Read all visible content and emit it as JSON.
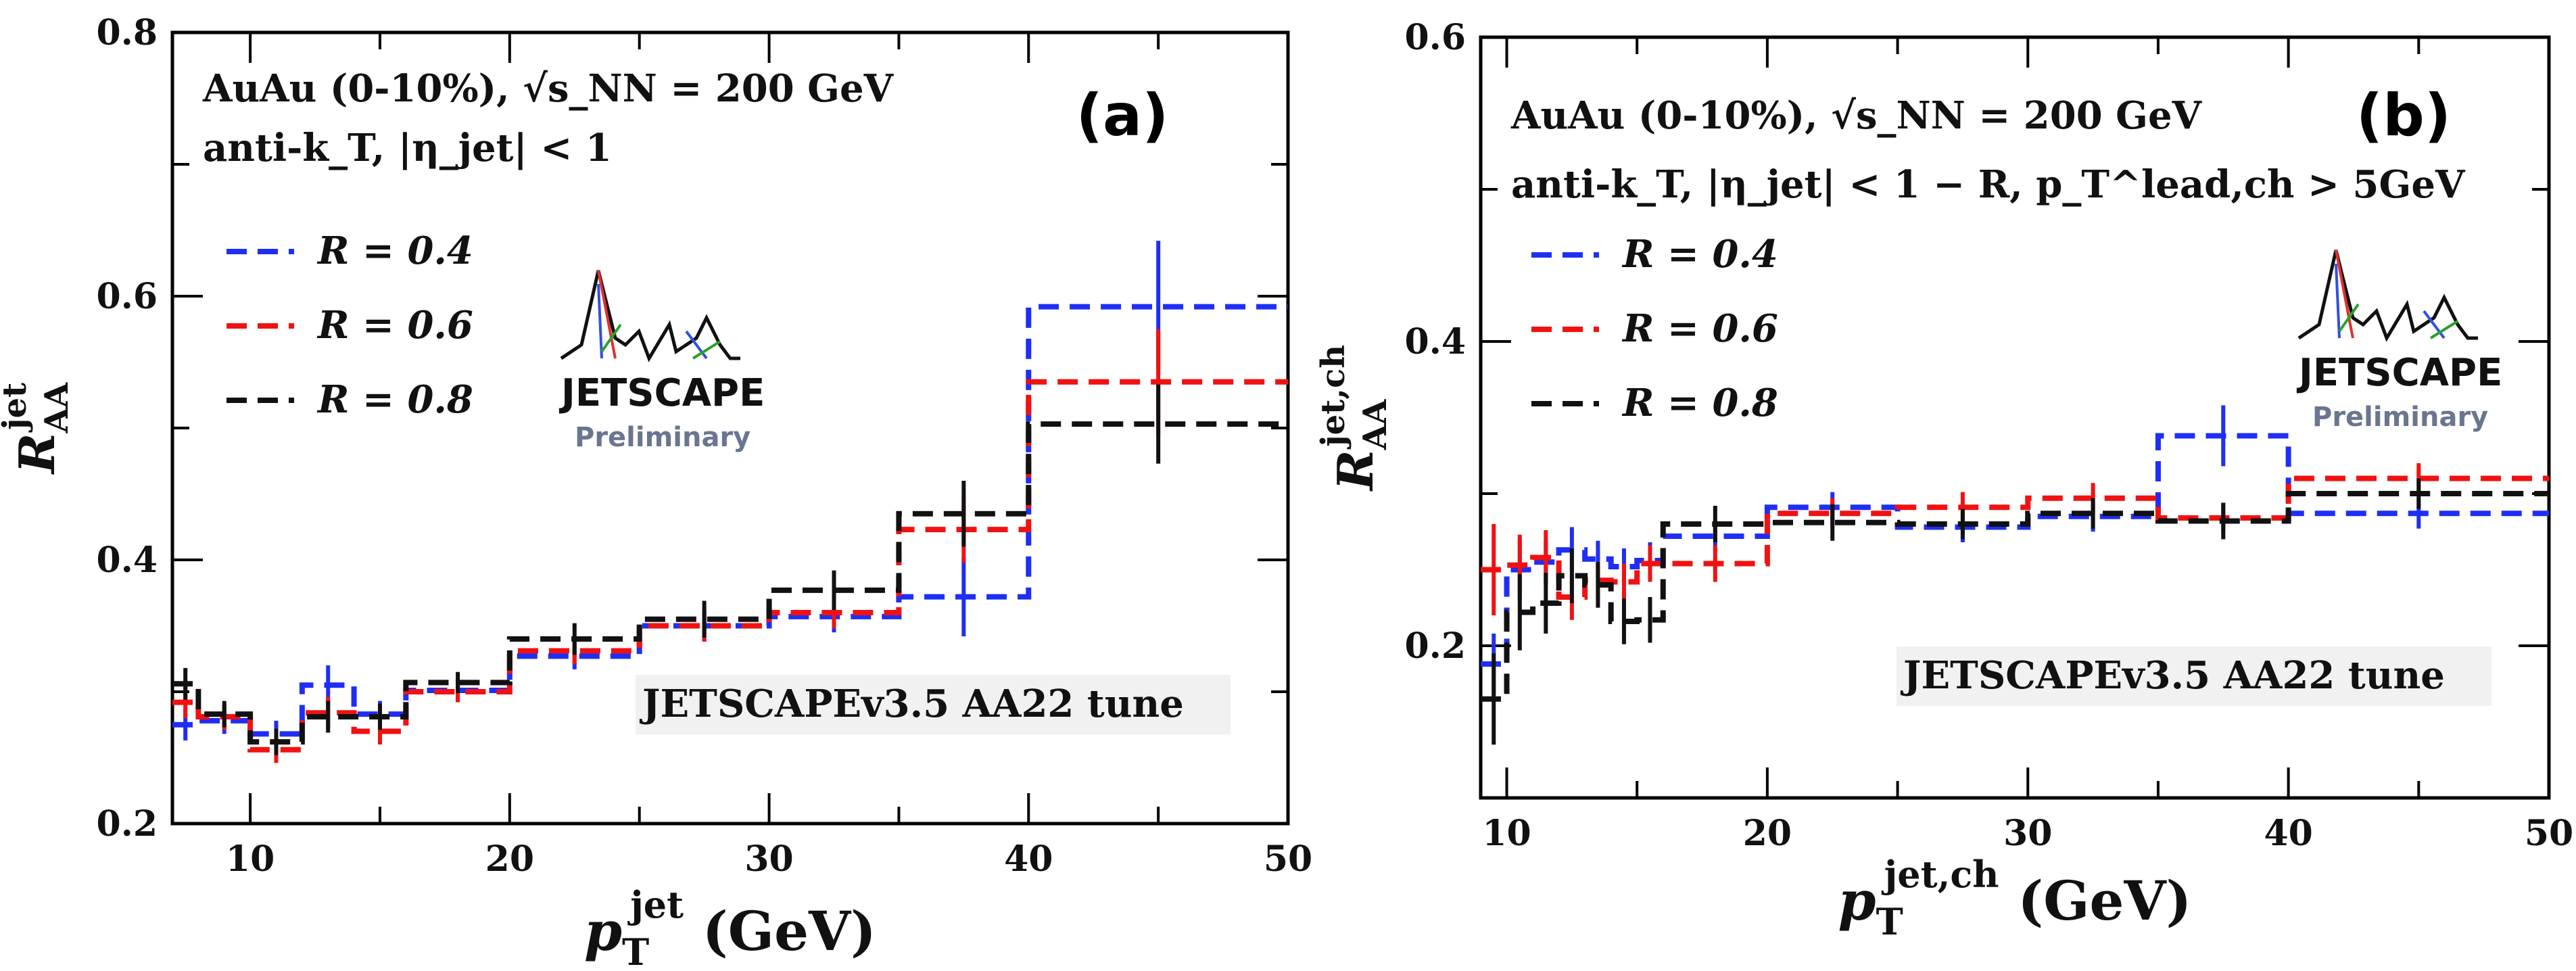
{
  "chart_data": [
    {
      "type": "line",
      "panel_tag": "(a)",
      "xlabel": "p_T^jet (GeV)",
      "xlabel_main": "p",
      "xlabel_sub": "T",
      "xlabel_sup": "jet",
      "xlabel_unit": " (GeV)",
      "ylabel_main": "R",
      "ylabel_sub": "AA",
      "ylabel_sup": "jet",
      "xlim": [
        7,
        50
      ],
      "ylim": [
        0.2,
        0.8
      ],
      "xticks": [
        10,
        20,
        30,
        40,
        50
      ],
      "yticks": [
        0.2,
        0.4,
        0.6,
        0.8
      ],
      "ytick_labels": [
        "0.2",
        "0.4",
        "0.6",
        "0.8"
      ],
      "annotation_line1": "AuAu (0-10%),  √s_NN = 200 GeV",
      "annotation_line2": "anti-k_T,  |η_jet| < 1",
      "tune_label": "JETSCAPEv3.5 AA22 tune",
      "legend_position": "top-left",
      "bin_edges": [
        7,
        8,
        10,
        12,
        14,
        16,
        20,
        25,
        30,
        35,
        40,
        50
      ],
      "series": [
        {
          "name": "R = 0.4",
          "color": "#1f2ef5",
          "values": [
            0.275,
            0.278,
            0.268,
            0.305,
            0.283,
            0.301,
            0.327,
            0.35,
            0.357,
            0.372,
            0.592
          ],
          "errors": [
            0.012,
            0.01,
            0.01,
            0.015,
            0.01,
            0.008,
            0.01,
            0.012,
            0.012,
            0.03,
            0.05
          ]
        },
        {
          "name": "R = 0.6",
          "color": "#f21111",
          "values": [
            0.292,
            0.281,
            0.256,
            0.284,
            0.27,
            0.3,
            0.331,
            0.35,
            0.36,
            0.423,
            0.535
          ],
          "errors": [
            0.012,
            0.01,
            0.01,
            0.012,
            0.01,
            0.008,
            0.01,
            0.012,
            0.012,
            0.025,
            0.04
          ]
        },
        {
          "name": "R = 0.8",
          "color": "#111111",
          "values": [
            0.306,
            0.283,
            0.262,
            0.281,
            0.281,
            0.307,
            0.34,
            0.355,
            0.377,
            0.435,
            0.503
          ],
          "errors": [
            0.012,
            0.01,
            0.01,
            0.012,
            0.01,
            0.008,
            0.012,
            0.014,
            0.015,
            0.025,
            0.03
          ]
        }
      ]
    },
    {
      "type": "line",
      "panel_tag": "(b)",
      "xlabel": "p_T^jet,ch (GeV)",
      "xlabel_main": "p",
      "xlabel_sub": "T",
      "xlabel_sup": "jet,ch",
      "xlabel_unit": " (GeV)",
      "ylabel_main": "R",
      "ylabel_sub": "AA",
      "ylabel_sup": "jet,ch",
      "xlim": [
        9,
        50
      ],
      "ylim": [
        0.1,
        0.6
      ],
      "xticks": [
        10,
        20,
        30,
        40,
        50
      ],
      "yticks": [
        0.2,
        0.4,
        0.6
      ],
      "ytick_labels": [
        "0.2",
        "0.4",
        "0.6"
      ],
      "annotation_line1": "AuAu (0-10%),  √s_NN = 200 GeV",
      "annotation_line2": "anti-k_T, |η_jet| < 1 − R, p_T^lead,ch > 5GeV",
      "tune_label": "JETSCAPEv3.5 AA22 tune",
      "legend_position": "top-left",
      "bin_edges": [
        9,
        10,
        11,
        12,
        13,
        14,
        15,
        16,
        20,
        25,
        30,
        35,
        40,
        50
      ],
      "series": [
        {
          "name": "R = 0.4",
          "color": "#1f2ef5",
          "values": [
            0.188,
            0.25,
            0.255,
            0.263,
            0.257,
            0.252,
            0.256,
            0.272,
            0.291,
            0.278,
            0.285,
            0.338,
            0.287
          ],
          "errors": [
            0.02,
            0.02,
            0.015,
            0.015,
            0.012,
            0.012,
            0.012,
            0.01,
            0.01,
            0.01,
            0.01,
            0.02,
            0.01
          ]
        },
        {
          "name": "R = 0.6",
          "color": "#f21111",
          "values": [
            0.25,
            0.253,
            0.258,
            0.232,
            0.243,
            0.242,
            0.254,
            0.254,
            0.287,
            0.291,
            0.297,
            0.284,
            0.31
          ],
          "errors": [
            0.03,
            0.02,
            0.018,
            0.015,
            0.012,
            0.012,
            0.012,
            0.012,
            0.01,
            0.01,
            0.01,
            0.01,
            0.01
          ]
        },
        {
          "name": "R = 0.8",
          "color": "#111111",
          "values": [
            0.165,
            0.222,
            0.228,
            0.246,
            0.24,
            0.216,
            0.217,
            0.28,
            0.281,
            0.28,
            0.287,
            0.282,
            0.3
          ],
          "errors": [
            0.03,
            0.025,
            0.02,
            0.018,
            0.015,
            0.015,
            0.015,
            0.012,
            0.012,
            0.01,
            0.01,
            0.012,
            0.01
          ]
        }
      ]
    }
  ],
  "logo": {
    "name": "JETSCAPE",
    "subtitle": "Preliminary"
  }
}
